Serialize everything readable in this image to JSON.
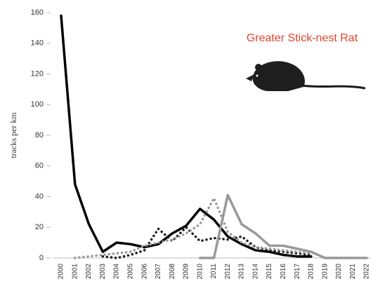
{
  "chart_data": {
    "type": "line",
    "title": "Greater Stick-nest Rat",
    "title_color": "#e0452b",
    "y_label": "tracks per km",
    "categories": [
      "2000",
      "2001",
      "2002",
      "2003",
      "2004",
      "2005",
      "2006",
      "2007",
      "2008",
      "2009",
      "2010",
      "2011",
      "2012",
      "2013",
      "2014",
      "2015",
      "2016",
      "2017",
      "2018",
      "2019",
      "2020",
      "2021",
      "2022"
    ],
    "series": [
      {
        "color": "#000000",
        "style": "solid",
        "width": 3.5,
        "values": [
          158,
          48,
          22,
          4,
          10,
          9,
          7,
          9,
          16,
          21,
          32,
          25,
          14,
          9,
          5,
          4,
          2,
          1,
          1,
          null,
          null,
          null,
          null
        ]
      },
      {
        "color": "#1a1a1a",
        "style": "dotted",
        "width": 3.5,
        "values": [
          null,
          null,
          null,
          1,
          0,
          2,
          5,
          19,
          11,
          20,
          11,
          13,
          12,
          14,
          7,
          5,
          4,
          3,
          2,
          null,
          null,
          null,
          null
        ]
      },
      {
        "color": "#999999",
        "style": "dotted",
        "width": 3.5,
        "values": [
          null,
          0,
          1,
          2,
          3,
          4,
          8,
          10,
          12,
          16,
          22,
          39,
          17,
          10,
          7,
          6,
          5,
          4,
          3,
          null,
          null,
          null,
          null
        ]
      },
      {
        "color": "#999999",
        "style": "solid",
        "width": 3.5,
        "values": [
          null,
          null,
          null,
          null,
          null,
          null,
          null,
          null,
          null,
          null,
          0,
          0,
          41,
          22,
          16,
          8,
          8,
          6,
          4,
          0,
          0,
          0,
          0
        ]
      }
    ],
    "ylim": [
      0,
      160
    ],
    "yticks": [
      0,
      20,
      40,
      60,
      80,
      100,
      120,
      140,
      160
    ]
  }
}
